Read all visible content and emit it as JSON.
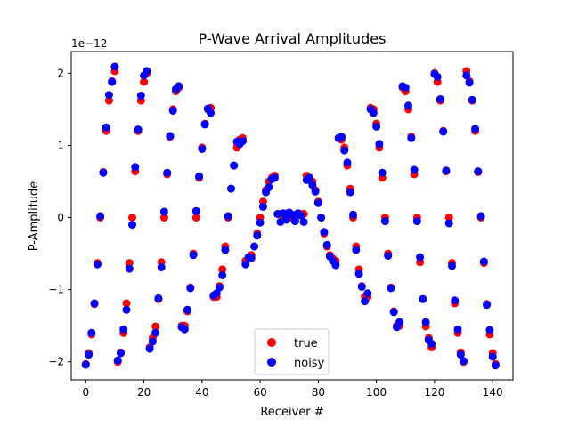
{
  "chart_data": {
    "type": "scatter",
    "title": "P-Wave Arrival Amplitudes",
    "xlabel": "Receiver #",
    "ylabel": "P-Amplitude",
    "y_multiplier": "1e−12",
    "xlim": [
      -5,
      147
    ],
    "ylim": [
      -2.25,
      2.3
    ],
    "x_ticks": [
      0,
      20,
      40,
      60,
      80,
      100,
      120,
      140
    ],
    "x_tick_labels": [
      "0",
      "20",
      "40",
      "60",
      "80",
      "100",
      "120",
      "140"
    ],
    "y_ticks": [
      -2,
      -1,
      0,
      1,
      2
    ],
    "y_tick_labels": [
      "−2",
      "−1",
      "0",
      "1",
      "2"
    ],
    "grid": false,
    "legend_placement": "lower-center",
    "series": [
      {
        "name": "true",
        "color": "#ff0000",
        "points": [
          [
            0,
            -2.03
          ],
          [
            1,
            -1.88
          ],
          [
            2,
            -1.62
          ],
          [
            3,
            -1.2
          ],
          [
            4,
            -0.63
          ],
          [
            5,
            0.0
          ],
          [
            6,
            0.63
          ],
          [
            7,
            1.2
          ],
          [
            8,
            1.62
          ],
          [
            9,
            1.89
          ],
          [
            10,
            2.03
          ],
          [
            11,
            -2.0
          ],
          [
            12,
            -1.87
          ],
          [
            13,
            -1.6
          ],
          [
            14,
            -1.19
          ],
          [
            15,
            -0.63
          ],
          [
            16,
            0.0
          ],
          [
            17,
            0.64
          ],
          [
            18,
            1.2
          ],
          [
            19,
            1.62
          ],
          [
            20,
            1.88
          ],
          [
            21,
            2.0
          ],
          [
            22,
            -1.8
          ],
          [
            23,
            -1.67
          ],
          [
            24,
            -1.51
          ],
          [
            25,
            -1.13
          ],
          [
            26,
            -0.62
          ],
          [
            27,
            0.0
          ],
          [
            28,
            0.6
          ],
          [
            29,
            1.12
          ],
          [
            30,
            1.5
          ],
          [
            31,
            1.75
          ],
          [
            32,
            1.8
          ],
          [
            33,
            -1.5
          ],
          [
            34,
            -1.5
          ],
          [
            35,
            -1.3
          ],
          [
            36,
            -0.97
          ],
          [
            37,
            -0.5
          ],
          [
            38,
            0.0
          ],
          [
            39,
            0.55
          ],
          [
            40,
            0.97
          ],
          [
            41,
            1.3
          ],
          [
            42,
            1.5
          ],
          [
            43,
            1.52
          ],
          [
            44,
            -1.1
          ],
          [
            45,
            -1.1
          ],
          [
            46,
            -0.95
          ],
          [
            47,
            -0.72
          ],
          [
            48,
            -0.4
          ],
          [
            49,
            0.0
          ],
          [
            50,
            0.4
          ],
          [
            51,
            0.72
          ],
          [
            52,
            0.97
          ],
          [
            53,
            1.08
          ],
          [
            54,
            1.1
          ],
          [
            55,
            -0.6
          ],
          [
            56,
            -0.57
          ],
          [
            57,
            -0.52
          ],
          [
            58,
            -0.4
          ],
          [
            59,
            -0.22
          ],
          [
            60,
            0.0
          ],
          [
            61,
            0.22
          ],
          [
            62,
            0.38
          ],
          [
            63,
            0.5
          ],
          [
            64,
            0.55
          ],
          [
            65,
            0.58
          ],
          [
            66,
            0.05
          ],
          [
            67,
            0.05
          ],
          [
            68,
            0.03
          ],
          [
            69,
            0.03
          ],
          [
            70,
            0.0
          ],
          [
            71,
            0.0
          ],
          [
            72,
            0.03
          ],
          [
            73,
            0.03
          ],
          [
            74,
            0.05
          ],
          [
            75,
            0.05
          ],
          [
            76,
            0.58
          ],
          [
            77,
            0.55
          ],
          [
            78,
            0.5
          ],
          [
            79,
            0.38
          ],
          [
            80,
            0.22
          ],
          [
            81,
            0.0
          ],
          [
            82,
            -0.22
          ],
          [
            83,
            -0.4
          ],
          [
            84,
            -0.52
          ],
          [
            85,
            -0.57
          ],
          [
            86,
            -0.6
          ],
          [
            87,
            1.1
          ],
          [
            88,
            1.08
          ],
          [
            89,
            0.97
          ],
          [
            90,
            0.72
          ],
          [
            91,
            0.4
          ],
          [
            92,
            0.0
          ],
          [
            93,
            -0.4
          ],
          [
            94,
            -0.72
          ],
          [
            95,
            -0.95
          ],
          [
            96,
            -1.1
          ],
          [
            97,
            -1.1
          ],
          [
            98,
            1.52
          ],
          [
            99,
            1.5
          ],
          [
            100,
            1.3
          ],
          [
            101,
            0.97
          ],
          [
            102,
            0.55
          ],
          [
            103,
            0.0
          ],
          [
            104,
            -0.5
          ],
          [
            105,
            -0.97
          ],
          [
            106,
            -1.3
          ],
          [
            107,
            -1.5
          ],
          [
            108,
            -1.5
          ],
          [
            109,
            1.8
          ],
          [
            110,
            1.75
          ],
          [
            111,
            1.5
          ],
          [
            112,
            1.12
          ],
          [
            113,
            0.6
          ],
          [
            114,
            0.0
          ],
          [
            115,
            -0.62
          ],
          [
            116,
            -1.13
          ],
          [
            117,
            -1.51
          ],
          [
            118,
            -1.67
          ],
          [
            119,
            -1.8
          ],
          [
            120,
            2.0
          ],
          [
            121,
            1.88
          ],
          [
            122,
            1.62
          ],
          [
            123,
            1.2
          ],
          [
            124,
            0.64
          ],
          [
            125,
            0.0
          ],
          [
            126,
            -0.63
          ],
          [
            127,
            -1.19
          ],
          [
            128,
            -1.6
          ],
          [
            129,
            -1.87
          ],
          [
            130,
            -2.0
          ],
          [
            131,
            2.03
          ],
          [
            132,
            1.89
          ],
          [
            133,
            1.62
          ],
          [
            134,
            1.2
          ],
          [
            135,
            0.63
          ],
          [
            136,
            0.0
          ],
          [
            137,
            -0.63
          ],
          [
            138,
            -1.2
          ],
          [
            139,
            -1.62
          ],
          [
            140,
            -1.88
          ],
          [
            141,
            -2.03
          ]
        ]
      },
      {
        "name": "noisy",
        "color": "#0000ff",
        "points": [
          [
            0,
            -2.04
          ],
          [
            1,
            -1.9
          ],
          [
            2,
            -1.6
          ],
          [
            3,
            -1.19
          ],
          [
            4,
            -0.65
          ],
          [
            5,
            0.02
          ],
          [
            6,
            0.62
          ],
          [
            7,
            1.25
          ],
          [
            8,
            1.7
          ],
          [
            9,
            1.88
          ],
          [
            10,
            2.09
          ],
          [
            11,
            -1.98
          ],
          [
            12,
            -1.88
          ],
          [
            13,
            -1.55
          ],
          [
            14,
            -1.28
          ],
          [
            15,
            -0.71
          ],
          [
            16,
            -0.1
          ],
          [
            17,
            0.7
          ],
          [
            18,
            1.22
          ],
          [
            19,
            1.69
          ],
          [
            20,
            1.97
          ],
          [
            21,
            2.03
          ],
          [
            22,
            -1.82
          ],
          [
            23,
            -1.72
          ],
          [
            24,
            -1.6
          ],
          [
            25,
            -1.12
          ],
          [
            26,
            -0.69
          ],
          [
            27,
            0.08
          ],
          [
            28,
            0.62
          ],
          [
            29,
            1.13
          ],
          [
            30,
            1.48
          ],
          [
            31,
            1.78
          ],
          [
            32,
            1.82
          ],
          [
            33,
            -1.52
          ],
          [
            34,
            -1.55
          ],
          [
            35,
            -1.28
          ],
          [
            36,
            -0.98
          ],
          [
            37,
            -0.52
          ],
          [
            38,
            0.09
          ],
          [
            39,
            0.57
          ],
          [
            40,
            0.95
          ],
          [
            41,
            1.29
          ],
          [
            42,
            1.51
          ],
          [
            43,
            1.45
          ],
          [
            44,
            -1.08
          ],
          [
            45,
            -1.05
          ],
          [
            46,
            -0.97
          ],
          [
            47,
            -0.8
          ],
          [
            48,
            -0.45
          ],
          [
            49,
            0.02
          ],
          [
            50,
            0.4
          ],
          [
            51,
            0.72
          ],
          [
            52,
            1.05
          ],
          [
            53,
            1.02
          ],
          [
            54,
            1.06
          ],
          [
            55,
            -0.65
          ],
          [
            56,
            -0.55
          ],
          [
            57,
            -0.56
          ],
          [
            58,
            -0.4
          ],
          [
            59,
            -0.25
          ],
          [
            60,
            -0.07
          ],
          [
            61,
            0.15
          ],
          [
            62,
            0.35
          ],
          [
            63,
            0.42
          ],
          [
            64,
            0.53
          ],
          [
            65,
            0.55
          ],
          [
            66,
            0.05
          ],
          [
            67,
            -0.06
          ],
          [
            68,
            0.06
          ],
          [
            69,
            -0.03
          ],
          [
            70,
            0.07
          ],
          [
            71,
            0.04
          ],
          [
            72,
            -0.05
          ],
          [
            73,
            0.06
          ],
          [
            74,
            0.03
          ],
          [
            75,
            -0.06
          ],
          [
            76,
            0.52
          ],
          [
            77,
            0.55
          ],
          [
            78,
            0.45
          ],
          [
            79,
            0.36
          ],
          [
            80,
            0.2
          ],
          [
            81,
            0.0
          ],
          [
            82,
            -0.2
          ],
          [
            83,
            -0.38
          ],
          [
            84,
            -0.54
          ],
          [
            85,
            -0.6
          ],
          [
            86,
            -0.66
          ],
          [
            87,
            1.1
          ],
          [
            88,
            1.12
          ],
          [
            89,
            0.93
          ],
          [
            90,
            0.76
          ],
          [
            91,
            0.35
          ],
          [
            92,
            0.04
          ],
          [
            93,
            -0.45
          ],
          [
            94,
            -0.78
          ],
          [
            95,
            -0.96
          ],
          [
            96,
            -1.16
          ],
          [
            97,
            -1.05
          ],
          [
            98,
            1.5
          ],
          [
            99,
            1.45
          ],
          [
            100,
            1.26
          ],
          [
            101,
            1.02
          ],
          [
            102,
            0.62
          ],
          [
            103,
            -0.05
          ],
          [
            104,
            -0.53
          ],
          [
            105,
            -0.98
          ],
          [
            106,
            -1.31
          ],
          [
            107,
            -1.52
          ],
          [
            108,
            -1.45
          ],
          [
            109,
            1.82
          ],
          [
            110,
            1.8
          ],
          [
            111,
            1.55
          ],
          [
            112,
            1.1
          ],
          [
            113,
            0.66
          ],
          [
            114,
            -0.05
          ],
          [
            115,
            -0.55
          ],
          [
            116,
            -1.13
          ],
          [
            117,
            -1.45
          ],
          [
            118,
            -1.7
          ],
          [
            119,
            -1.75
          ],
          [
            120,
            1.99
          ],
          [
            121,
            1.95
          ],
          [
            122,
            1.64
          ],
          [
            123,
            1.19
          ],
          [
            124,
            0.65
          ],
          [
            125,
            -0.08
          ],
          [
            126,
            -0.67
          ],
          [
            127,
            -1.15
          ],
          [
            128,
            -1.55
          ],
          [
            129,
            -1.9
          ],
          [
            130,
            -1.99
          ],
          [
            131,
            1.97
          ],
          [
            132,
            1.87
          ],
          [
            133,
            1.63
          ],
          [
            134,
            1.23
          ],
          [
            135,
            0.64
          ],
          [
            136,
            0.02
          ],
          [
            137,
            -0.61
          ],
          [
            138,
            -1.21
          ],
          [
            139,
            -1.56
          ],
          [
            140,
            -1.93
          ],
          [
            141,
            -2.05
          ]
        ]
      }
    ]
  }
}
